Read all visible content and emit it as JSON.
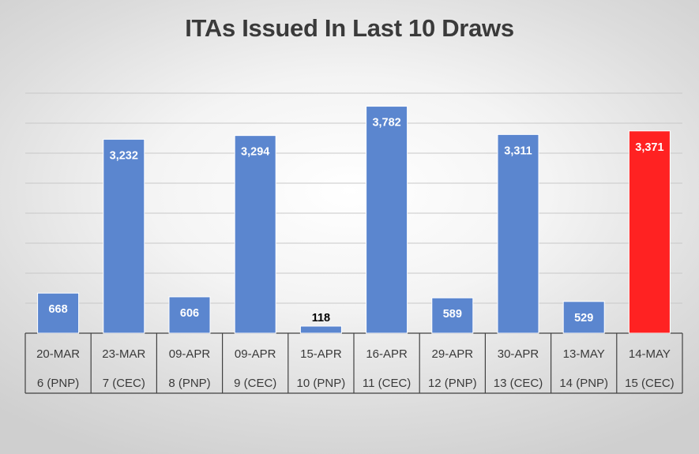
{
  "chart_data": {
    "type": "bar",
    "title": "ITAs Issued In Last 10 Draws",
    "categories": [
      [
        "20-MAR",
        "6 (PNP)"
      ],
      [
        "23-MAR",
        "7 (CEC)"
      ],
      [
        "09-APR",
        "8 (PNP)"
      ],
      [
        "09-APR",
        "9 (CEC)"
      ],
      [
        "15-APR",
        "10 (PNP)"
      ],
      [
        "16-APR",
        "11 (CEC)"
      ],
      [
        "29-APR",
        "12 (PNP)"
      ],
      [
        "30-APR",
        "13 (CEC)"
      ],
      [
        "13-MAY",
        "14 (PNP)"
      ],
      [
        "14-MAY",
        "15 (CEC)"
      ]
    ],
    "values": [
      668,
      3232,
      606,
      3294,
      118,
      3782,
      589,
      3311,
      529,
      3371
    ],
    "value_labels": [
      "668",
      "3,232",
      "606",
      "3,294",
      "118",
      "3,782",
      "589",
      "3,311",
      "529",
      "3,371"
    ],
    "ylim": [
      0,
      4000
    ],
    "grid": true,
    "legend": "none",
    "colors": {
      "default_bar": "#5b86cf",
      "highlight_bar": "#ff2222",
      "highlight_index": 9,
      "label_on_bar": "#ffffff",
      "label_above_bar": "#000000"
    }
  }
}
